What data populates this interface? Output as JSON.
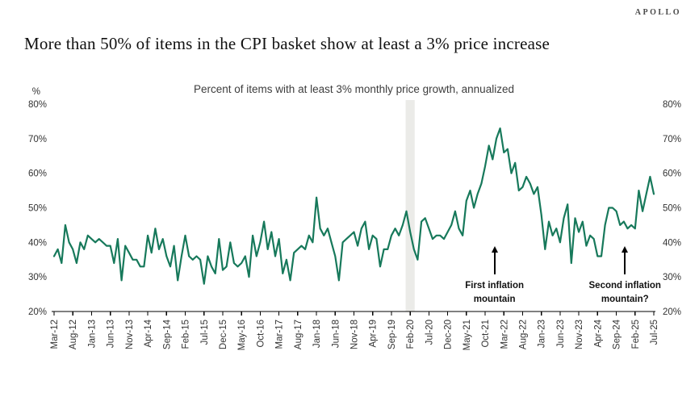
{
  "header": {
    "logo": "APOLLO",
    "title": "More than 50% of items in the CPI basket show at least a 3% price increase"
  },
  "chart_data": {
    "type": "line",
    "title": "Percent of items with at least 3% monthly price growth, annualized",
    "y_unit": "%",
    "ylim": [
      20,
      80
    ],
    "y_ticks": [
      80,
      70,
      60,
      50,
      40,
      30,
      20
    ],
    "grid": false,
    "legend": false,
    "axis_color": "#000000",
    "label_color": "#333333",
    "x_tick_interval": 5,
    "x_tick_labels": [
      "Mar-12",
      "Aug-12",
      "Jan-13",
      "Jun-13",
      "Nov-13",
      "Apr-14",
      "Sep-14",
      "Feb-15",
      "Jul-15",
      "Dec-15",
      "May-16",
      "Oct-16",
      "Mar-17",
      "Aug-17",
      "Jan-18",
      "Jun-18",
      "Nov-18",
      "Apr-19",
      "Sep-19",
      "Feb-20",
      "Jul-20",
      "Dec-20",
      "May-21",
      "Oct-21",
      "Mar-22",
      "Aug-22",
      "Jan-23",
      "Jun-23",
      "Nov-23",
      "Apr-24",
      "Sep-24",
      "Feb-25",
      "Jul-25"
    ],
    "series": [
      {
        "name": "Percent of items with at least 3% monthly price growth, annualized",
        "color": "#17795b",
        "line_width": 2.2,
        "start_month": "Mar-12",
        "end_month": "Jul-25",
        "values": [
          36,
          38,
          34,
          45,
          40,
          38,
          34,
          40,
          38,
          42,
          41,
          40,
          41,
          40,
          39,
          39,
          34,
          41,
          29,
          39,
          37,
          35,
          35,
          33,
          33,
          42,
          37,
          44,
          38,
          41,
          36,
          33,
          39,
          29,
          36,
          42,
          36,
          35,
          36,
          35,
          28,
          36,
          33,
          31,
          41,
          32,
          33,
          40,
          34,
          33,
          34,
          36,
          30,
          42,
          36,
          40,
          46,
          38,
          43,
          36,
          41,
          31,
          35,
          29,
          37,
          38,
          39,
          38,
          42,
          40,
          53,
          44,
          42,
          44,
          40,
          36,
          29,
          40,
          41,
          42,
          43,
          39,
          44,
          46,
          38,
          42,
          41,
          33,
          38,
          38,
          42,
          44,
          42,
          45,
          49,
          43,
          38,
          35,
          46,
          47,
          44,
          41,
          42,
          42,
          41,
          43,
          45,
          49,
          44,
          42,
          52,
          55,
          50,
          54,
          57,
          62,
          68,
          64,
          70,
          73,
          66,
          67,
          60,
          63,
          55,
          56,
          59,
          57,
          54,
          56,
          48,
          38,
          46,
          42,
          44,
          40,
          47,
          51,
          34,
          47,
          43,
          46,
          39,
          42,
          41,
          36,
          36,
          45,
          50,
          50,
          49,
          45,
          46,
          44,
          45,
          44,
          55,
          49,
          54,
          59,
          54
        ]
      }
    ],
    "highlight_band": {
      "color": "#ebebe8",
      "start_index": 93.8,
      "end_index": 96.2,
      "around_label": "Feb-20"
    },
    "annotations": [
      {
        "line1": "First inflation",
        "line2": "mountain",
        "x_index": 117.5
      },
      {
        "line1": "Second inflation",
        "line2": "mountain?",
        "x_index": 152.3
      }
    ]
  }
}
